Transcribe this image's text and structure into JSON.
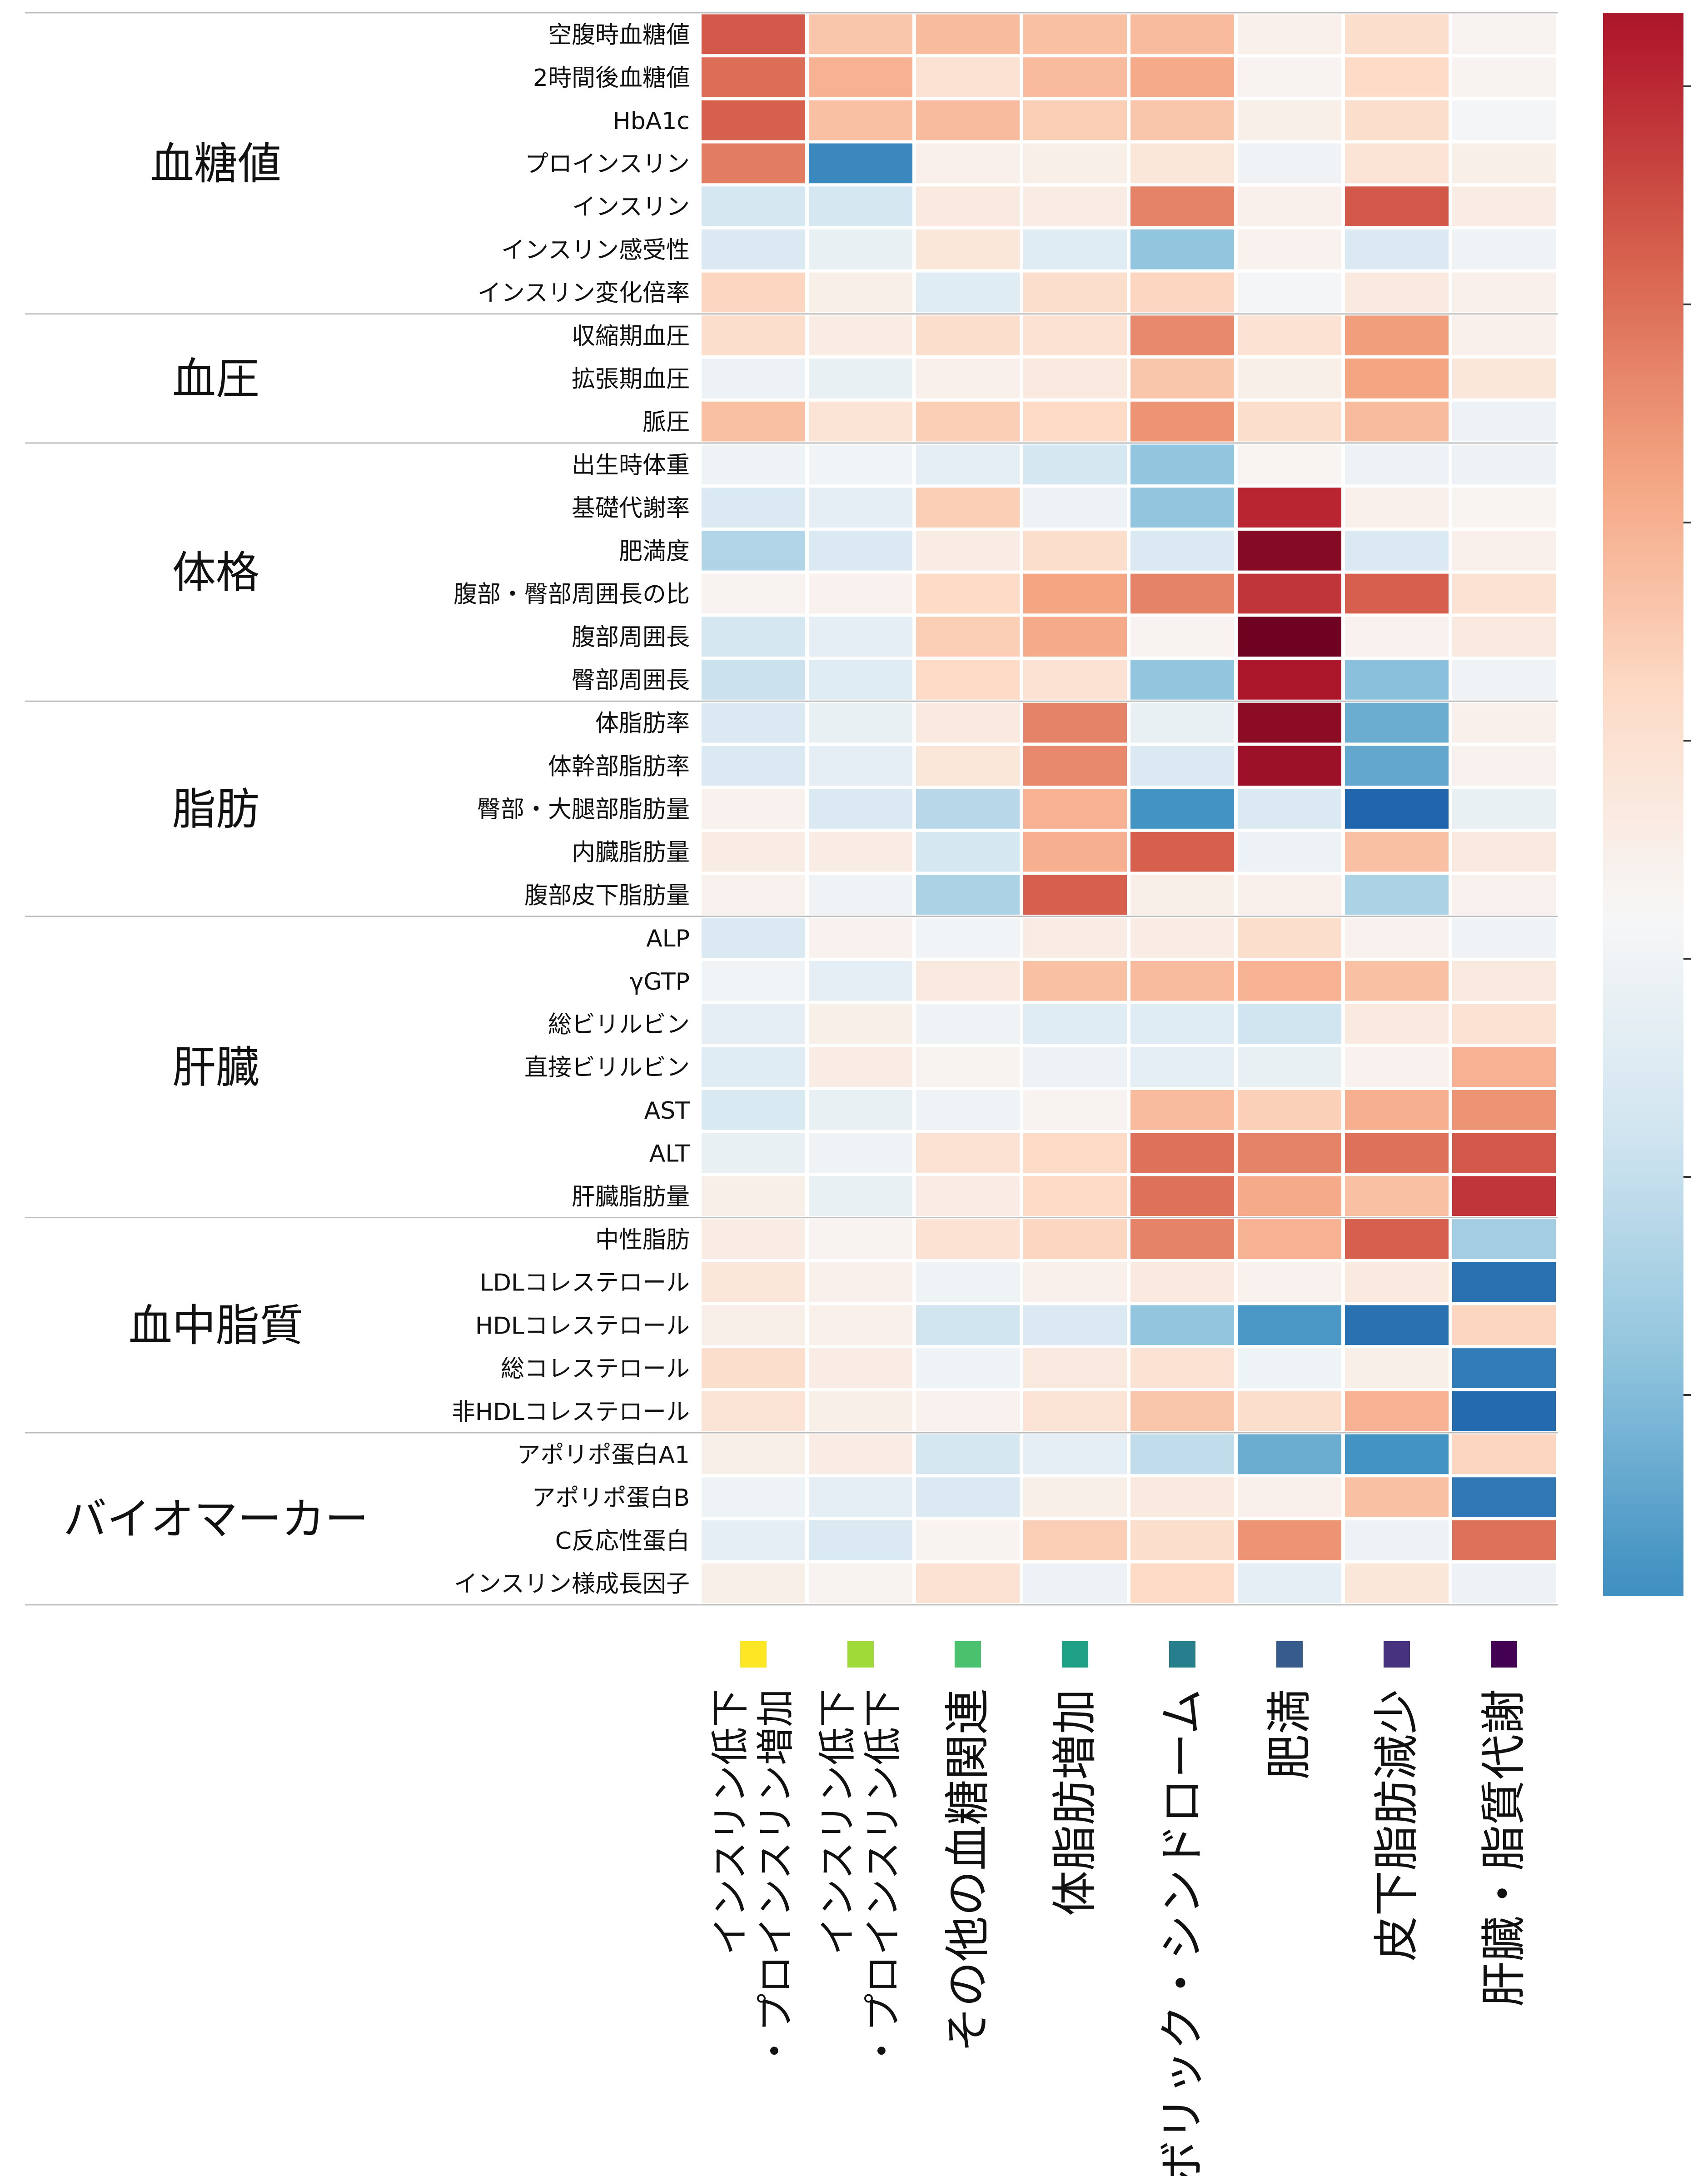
{
  "chart_data": {
    "type": "heatmap",
    "title": "",
    "xlabel": "",
    "ylabel": "",
    "colormap": "RdBu_r",
    "value_range": [
      -1,
      1
    ],
    "colorbar": {
      "position": "right",
      "tick_labels": []
    },
    "columns": [
      {
        "label": "インスリン低下\n・プロインスリン増加",
        "color": "#fde725"
      },
      {
        "label": "インスリン低下\n・プロインスリン低下",
        "color": "#a0da39"
      },
      {
        "label": "その他の血糖関連",
        "color": "#4ac16d"
      },
      {
        "label": "体脂肪増加",
        "color": "#1fa187"
      },
      {
        "label": "メタボリック・シンドローム",
        "color": "#277f8e"
      },
      {
        "label": "肥満",
        "color": "#365c8d"
      },
      {
        "label": "皮下脂肪減少",
        "color": "#46327e"
      },
      {
        "label": "肝臓・脂質代謝",
        "color": "#440154"
      }
    ],
    "groups": [
      {
        "name": "血糖値",
        "rows": [
          {
            "label": "空腹時血糖値",
            "values": [
              0.62,
              0.28,
              0.32,
              0.3,
              0.32,
              0.05,
              0.18,
              0.03
            ]
          },
          {
            "label": "2時間後血糖値",
            "values": [
              0.56,
              0.35,
              0.15,
              0.32,
              0.38,
              0.03,
              0.2,
              0.03
            ]
          },
          {
            "label": "HbA1c",
            "values": [
              0.6,
              0.3,
              0.32,
              0.25,
              0.28,
              0.06,
              0.18,
              -0.02
            ]
          },
          {
            "label": "プロインスリン",
            "values": [
              0.52,
              -0.65,
              0.05,
              0.06,
              0.12,
              -0.04,
              0.14,
              0.06
            ]
          },
          {
            "label": "インスリン",
            "values": [
              -0.18,
              -0.18,
              0.1,
              0.08,
              0.5,
              0.05,
              0.62,
              0.08
            ]
          },
          {
            "label": "インスリン感受性",
            "values": [
              -0.15,
              -0.08,
              0.12,
              -0.12,
              -0.4,
              0.04,
              -0.15,
              -0.04
            ]
          },
          {
            "label": "インスリン変化倍率",
            "values": [
              0.22,
              0.06,
              -0.12,
              0.18,
              0.22,
              -0.02,
              0.1,
              0.05
            ]
          }
        ]
      },
      {
        "name": "血圧",
        "rows": [
          {
            "label": "収縮期血圧",
            "values": [
              0.18,
              0.08,
              0.18,
              0.15,
              0.48,
              0.15,
              0.42,
              0.05
            ]
          },
          {
            "label": "拡張期血圧",
            "values": [
              -0.06,
              -0.08,
              0.05,
              0.1,
              0.28,
              0.06,
              0.4,
              0.12
            ]
          },
          {
            "label": "脈圧",
            "values": [
              0.3,
              0.14,
              0.25,
              0.2,
              0.45,
              0.18,
              0.32,
              -0.06
            ]
          }
        ]
      },
      {
        "name": "体格",
        "rows": [
          {
            "label": "出生時体重",
            "values": [
              -0.05,
              -0.03,
              -0.1,
              -0.18,
              -0.4,
              0.02,
              -0.06,
              -0.06
            ]
          },
          {
            "label": "基礎代謝率",
            "values": [
              -0.15,
              -0.1,
              0.25,
              -0.06,
              -0.4,
              0.76,
              0.05,
              0.02
            ]
          },
          {
            "label": "肥満度",
            "values": [
              -0.3,
              -0.15,
              0.08,
              0.18,
              -0.15,
              0.92,
              -0.15,
              0.05
            ]
          },
          {
            "label": "腹部・臀部周囲長の比",
            "values": [
              0.03,
              0.04,
              0.2,
              0.4,
              0.5,
              0.72,
              0.6,
              0.15
            ]
          },
          {
            "label": "腹部周囲長",
            "values": [
              -0.18,
              -0.1,
              0.25,
              0.38,
              0.03,
              0.98,
              0.04,
              0.1
            ]
          },
          {
            "label": "臀部周囲長",
            "values": [
              -0.22,
              -0.12,
              0.2,
              0.15,
              -0.4,
              0.82,
              -0.42,
              -0.04
            ]
          }
        ]
      },
      {
        "name": "脂肪",
        "rows": [
          {
            "label": "体脂肪率",
            "values": [
              -0.15,
              -0.08,
              0.1,
              0.5,
              -0.08,
              0.9,
              -0.5,
              0.05
            ]
          },
          {
            "label": "体幹部脂肪率",
            "values": [
              -0.15,
              -0.1,
              0.12,
              0.48,
              -0.15,
              0.86,
              -0.52,
              0.04
            ]
          },
          {
            "label": "臀部・大腿部脂肪量",
            "values": [
              0.04,
              -0.15,
              -0.28,
              0.35,
              -0.6,
              -0.15,
              -0.8,
              -0.08
            ]
          },
          {
            "label": "内臓脂肪量",
            "values": [
              0.08,
              0.08,
              -0.18,
              0.36,
              0.6,
              -0.06,
              0.3,
              0.1
            ]
          },
          {
            "label": "腹部皮下脂肪量",
            "values": [
              0.04,
              -0.04,
              -0.32,
              0.6,
              0.06,
              0.05,
              -0.32,
              0.04
            ]
          }
        ]
      },
      {
        "name": "肝臓",
        "rows": [
          {
            "label": "ALP",
            "values": [
              -0.15,
              0.04,
              -0.03,
              0.08,
              0.08,
              0.18,
              0.04,
              -0.04
            ]
          },
          {
            "label": "γGTP",
            "values": [
              -0.03,
              -0.1,
              0.1,
              0.3,
              0.32,
              0.35,
              0.3,
              0.1
            ]
          },
          {
            "label": "総ビリルビン",
            "values": [
              -0.1,
              0.06,
              -0.04,
              -0.12,
              -0.12,
              -0.2,
              0.1,
              0.15
            ]
          },
          {
            "label": "直接ビリルビン",
            "values": [
              -0.12,
              0.08,
              0.03,
              -0.06,
              -0.1,
              -0.08,
              0.04,
              0.35
            ]
          },
          {
            "label": "AST",
            "values": [
              -0.16,
              -0.08,
              -0.04,
              0.03,
              0.32,
              0.24,
              0.36,
              0.45
            ]
          },
          {
            "label": "ALT",
            "values": [
              -0.08,
              -0.04,
              0.15,
              0.2,
              0.55,
              0.5,
              0.55,
              0.62
            ]
          },
          {
            "label": "肝臓脂肪量",
            "values": [
              0.06,
              -0.08,
              0.08,
              0.2,
              0.55,
              0.38,
              0.3,
              0.72
            ]
          }
        ]
      },
      {
        "name": "血中脂質",
        "rows": [
          {
            "label": "中性脂肪",
            "values": [
              0.08,
              0.03,
              0.15,
              0.22,
              0.5,
              0.35,
              0.6,
              -0.35
            ]
          },
          {
            "label": "LDLコレステロール",
            "values": [
              0.12,
              0.05,
              -0.05,
              0.05,
              0.1,
              0.04,
              0.1,
              -0.75
            ]
          },
          {
            "label": "HDLコレステロール",
            "values": [
              0.06,
              0.05,
              -0.2,
              -0.15,
              -0.4,
              -0.58,
              -0.75,
              0.22
            ]
          },
          {
            "label": "総コレステロール",
            "values": [
              0.18,
              0.08,
              -0.05,
              0.1,
              0.15,
              -0.05,
              0.06,
              -0.7
            ]
          },
          {
            "label": "非HDLコレステロール",
            "values": [
              0.14,
              0.06,
              0.04,
              0.14,
              0.28,
              0.18,
              0.35,
              -0.78
            ]
          }
        ]
      },
      {
        "name": "バイオマーカー",
        "rows": [
          {
            "label": "アポリポ蛋白A1",
            "values": [
              0.06,
              0.08,
              -0.18,
              -0.1,
              -0.25,
              -0.5,
              -0.6,
              0.22
            ]
          },
          {
            "label": "アポリポ蛋白B",
            "values": [
              -0.05,
              -0.1,
              -0.15,
              0.06,
              0.1,
              0.05,
              0.3,
              -0.72
            ]
          },
          {
            "label": "C反応性蛋白",
            "values": [
              -0.1,
              -0.15,
              0.03,
              0.25,
              0.18,
              0.45,
              -0.06,
              0.55
            ]
          },
          {
            "label": "インスリン様成長因子",
            "values": [
              0.06,
              0.03,
              0.15,
              -0.06,
              0.2,
              -0.1,
              0.12,
              -0.06
            ]
          }
        ]
      }
    ]
  }
}
